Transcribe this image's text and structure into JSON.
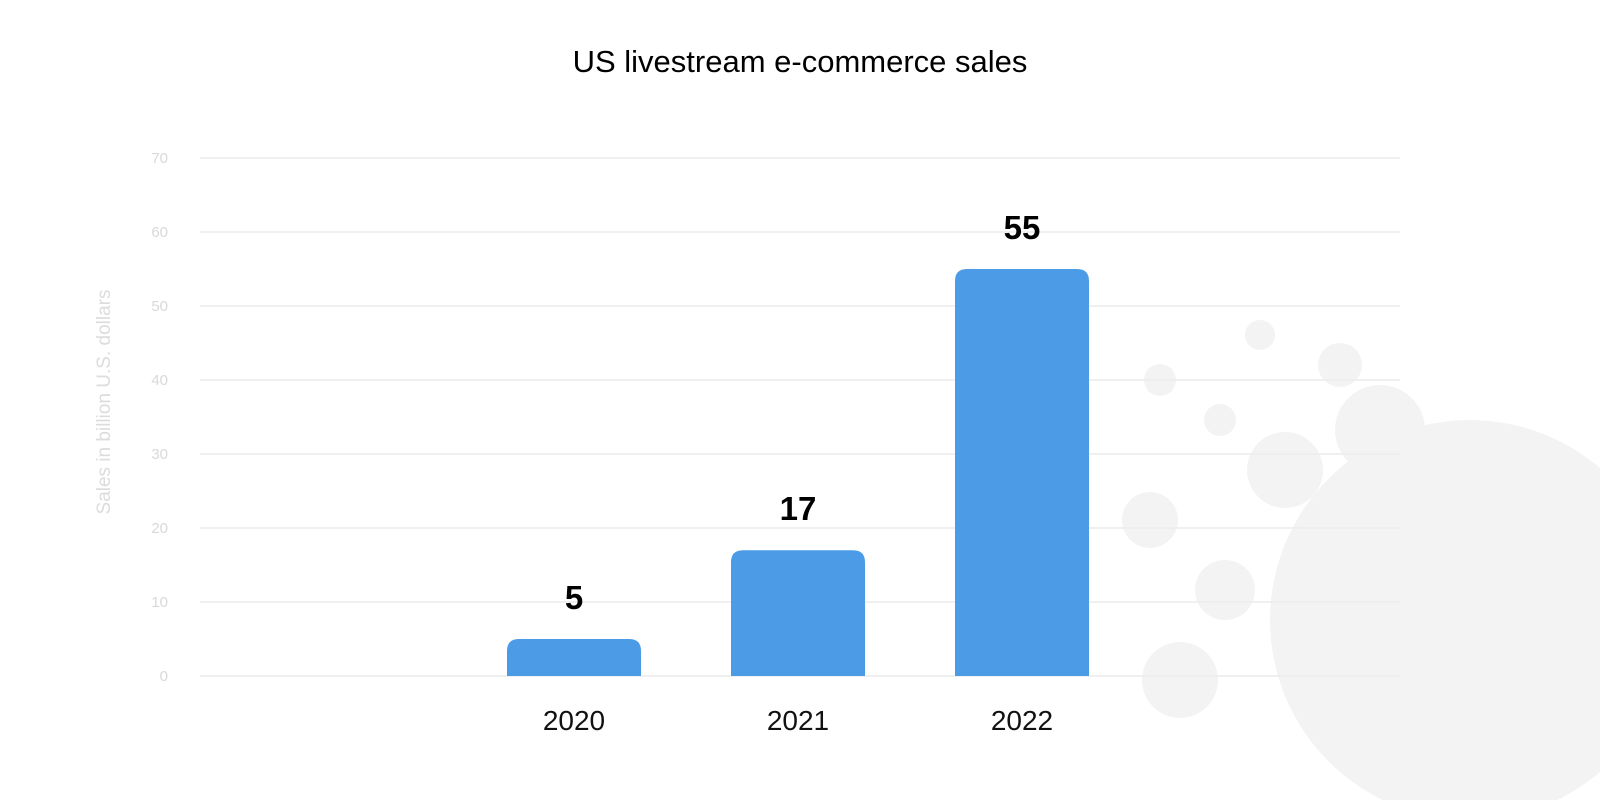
{
  "chart_data": {
    "type": "bar",
    "title": "US livestream e-commerce sales",
    "xlabel": "",
    "ylabel": "Sales in billion U.S. dollars",
    "categories": [
      "2020",
      "2021",
      "2022"
    ],
    "values": [
      5,
      17,
      55
    ],
    "data_labels": [
      "5",
      "17",
      "55"
    ],
    "ylim": [
      0,
      70
    ],
    "yticks": [
      0,
      10,
      20,
      30,
      40,
      50,
      60,
      70
    ],
    "grid": true,
    "legend": "none",
    "bar_color": "#4c9be6"
  }
}
